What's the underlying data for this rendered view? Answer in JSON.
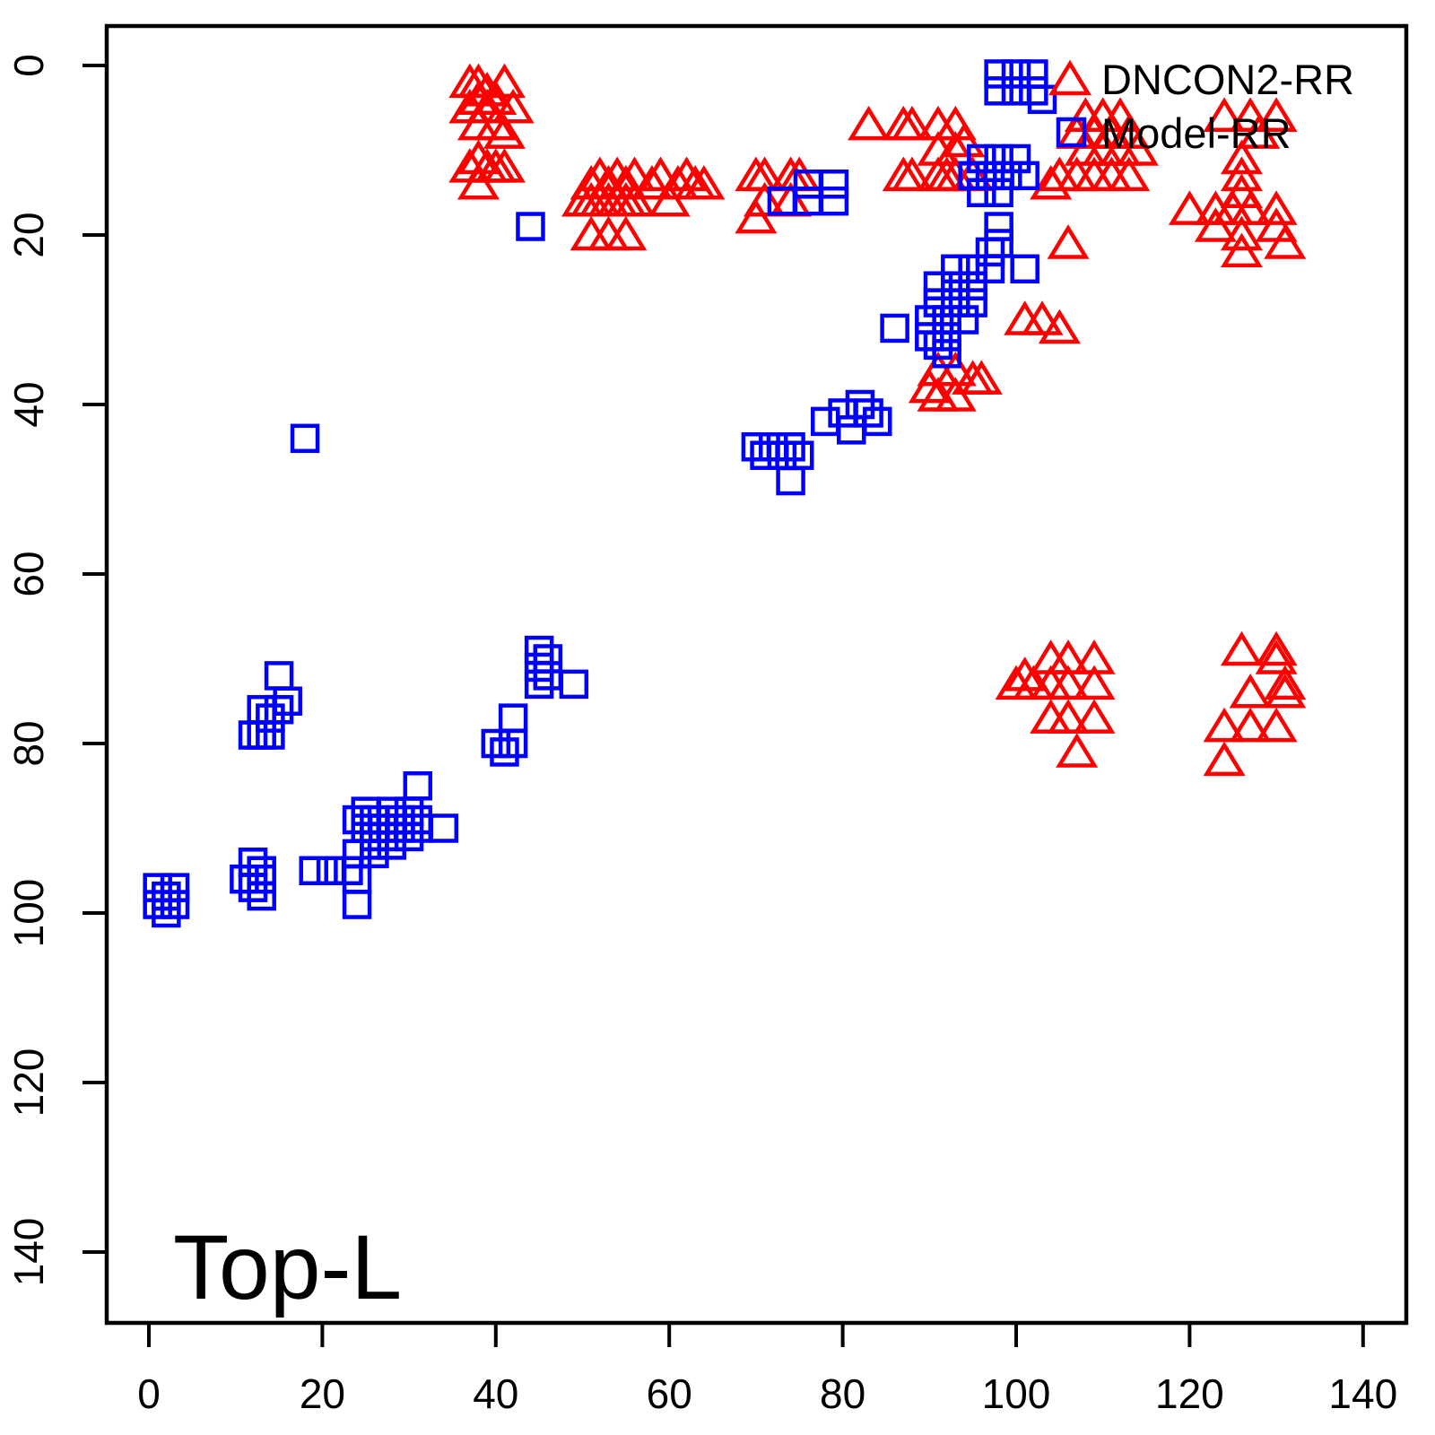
{
  "figure": {
    "corner_label": "Top-L",
    "background_color": "#FFFFFF",
    "axis_color": "#000000"
  },
  "legend": {
    "position": "top-right",
    "items": [
      {
        "label": "DNCON2-RR",
        "marker": "triangle",
        "color": "#FF0000"
      },
      {
        "label": "Model-RR",
        "marker": "square",
        "color": "#0000FF"
      }
    ]
  },
  "chart_data": {
    "type": "scatter",
    "title": "",
    "xlabel": "",
    "ylabel": "",
    "annotation": "Top-L",
    "grid": false,
    "x_ticks": [
      0,
      20,
      40,
      60,
      80,
      100,
      120,
      140
    ],
    "y_ticks": [
      0,
      20,
      40,
      60,
      80,
      100,
      120,
      140
    ],
    "xlim": [
      0,
      151
    ],
    "ylim": [
      0,
      153
    ],
    "y_axis_inverted": true,
    "series": [
      {
        "name": "DNCON2-RR",
        "marker": "triangle",
        "color": "#FF0000",
        "points": [
          [
            37,
            2
          ],
          [
            38,
            2
          ],
          [
            39,
            3
          ],
          [
            41,
            2
          ],
          [
            37,
            5
          ],
          [
            38,
            4
          ],
          [
            39,
            5
          ],
          [
            40,
            4
          ],
          [
            42,
            5
          ],
          [
            38,
            7
          ],
          [
            40,
            7
          ],
          [
            41,
            8
          ],
          [
            37,
            12
          ],
          [
            38,
            11
          ],
          [
            39,
            12
          ],
          [
            40,
            12
          ],
          [
            41,
            12
          ],
          [
            38,
            14
          ],
          [
            51,
            14
          ],
          [
            52,
            13
          ],
          [
            53,
            14
          ],
          [
            54,
            13
          ],
          [
            55,
            14
          ],
          [
            56,
            13
          ],
          [
            58,
            14
          ],
          [
            59,
            13
          ],
          [
            61,
            14
          ],
          [
            62,
            13
          ],
          [
            63,
            14
          ],
          [
            64,
            14
          ],
          [
            50,
            16
          ],
          [
            51,
            16
          ],
          [
            52,
            16
          ],
          [
            53,
            16
          ],
          [
            54,
            16
          ],
          [
            55,
            16
          ],
          [
            56,
            16
          ],
          [
            60,
            16
          ],
          [
            51,
            20
          ],
          [
            53,
            20
          ],
          [
            55,
            20
          ],
          [
            70,
            13
          ],
          [
            71,
            13
          ],
          [
            74,
            13
          ],
          [
            75,
            13
          ],
          [
            71,
            16
          ],
          [
            74,
            16
          ],
          [
            70,
            18
          ],
          [
            83,
            7
          ],
          [
            87,
            7
          ],
          [
            88,
            7
          ],
          [
            91,
            7
          ],
          [
            93,
            7
          ],
          [
            91,
            10
          ],
          [
            93,
            10
          ],
          [
            94,
            9
          ],
          [
            87,
            13
          ],
          [
            88,
            13
          ],
          [
            91,
            13
          ],
          [
            92,
            13
          ],
          [
            93,
            13
          ],
          [
            95,
            13
          ],
          [
            108,
            6
          ],
          [
            110,
            6
          ],
          [
            112,
            6
          ],
          [
            107,
            8
          ],
          [
            109,
            8
          ],
          [
            111,
            8
          ],
          [
            113,
            8
          ],
          [
            108,
            10
          ],
          [
            110,
            10
          ],
          [
            112,
            10
          ],
          [
            114,
            10
          ],
          [
            105,
            13
          ],
          [
            107,
            13
          ],
          [
            109,
            13
          ],
          [
            111,
            13
          ],
          [
            113,
            13
          ],
          [
            104,
            14
          ],
          [
            124,
            6
          ],
          [
            127,
            6
          ],
          [
            130,
            6
          ],
          [
            128,
            8
          ],
          [
            126,
            11
          ],
          [
            126,
            13
          ],
          [
            126,
            15
          ],
          [
            120,
            17
          ],
          [
            123,
            17
          ],
          [
            125,
            17
          ],
          [
            127,
            17
          ],
          [
            130,
            17
          ],
          [
            123,
            19
          ],
          [
            130,
            19
          ],
          [
            126,
            20
          ],
          [
            131,
            21
          ],
          [
            126,
            22
          ],
          [
            106,
            21
          ],
          [
            101,
            30
          ],
          [
            103,
            30
          ],
          [
            105,
            31
          ],
          [
            90,
            38
          ],
          [
            91,
            36
          ],
          [
            93,
            36
          ],
          [
            95,
            37
          ],
          [
            96,
            37
          ],
          [
            91,
            39
          ],
          [
            93,
            39
          ],
          [
            104,
            70
          ],
          [
            106,
            70
          ],
          [
            109,
            70
          ],
          [
            101,
            72
          ],
          [
            100,
            73
          ],
          [
            102,
            73
          ],
          [
            104,
            73
          ],
          [
            106,
            73
          ],
          [
            109,
            73
          ],
          [
            104,
            77
          ],
          [
            106,
            77
          ],
          [
            109,
            77
          ],
          [
            107,
            81
          ],
          [
            126,
            69
          ],
          [
            130,
            69
          ],
          [
            130,
            70
          ],
          [
            131,
            73
          ],
          [
            127,
            74
          ],
          [
            131,
            74
          ],
          [
            124,
            78
          ],
          [
            127,
            78
          ],
          [
            130,
            78
          ],
          [
            124,
            82
          ]
        ]
      },
      {
        "name": "Model-RR",
        "marker": "square",
        "color": "#0000FF",
        "points": [
          [
            98,
            1
          ],
          [
            100,
            1
          ],
          [
            102,
            1
          ],
          [
            98,
            3
          ],
          [
            100,
            3
          ],
          [
            102,
            3
          ],
          [
            103,
            4
          ],
          [
            96,
            11
          ],
          [
            98,
            11
          ],
          [
            100,
            11
          ],
          [
            95,
            13
          ],
          [
            97,
            13
          ],
          [
            99,
            13
          ],
          [
            101,
            13
          ],
          [
            96,
            15
          ],
          [
            98,
            15
          ],
          [
            73,
            16
          ],
          [
            76,
            14
          ],
          [
            76,
            16
          ],
          [
            79,
            14
          ],
          [
            79,
            16
          ],
          [
            44,
            19
          ],
          [
            98,
            19
          ],
          [
            98,
            21
          ],
          [
            97,
            22
          ],
          [
            101,
            24
          ],
          [
            93,
            24
          ],
          [
            95,
            24
          ],
          [
            97,
            24
          ],
          [
            91,
            26
          ],
          [
            93,
            26
          ],
          [
            95,
            26
          ],
          [
            91,
            28
          ],
          [
            93,
            28
          ],
          [
            95,
            28
          ],
          [
            90,
            30
          ],
          [
            92,
            30
          ],
          [
            94,
            30
          ],
          [
            86,
            31
          ],
          [
            90,
            32
          ],
          [
            92,
            32
          ],
          [
            91,
            33
          ],
          [
            92,
            34
          ],
          [
            82,
            40
          ],
          [
            80,
            41
          ],
          [
            83,
            41
          ],
          [
            78,
            42
          ],
          [
            84,
            42
          ],
          [
            81,
            43
          ],
          [
            70,
            45
          ],
          [
            72,
            45
          ],
          [
            74,
            45
          ],
          [
            71,
            46
          ],
          [
            73,
            46
          ],
          [
            75,
            46
          ],
          [
            74,
            49
          ],
          [
            18,
            44
          ],
          [
            45,
            69
          ],
          [
            46,
            70
          ],
          [
            45,
            71
          ],
          [
            46,
            72
          ],
          [
            45,
            73
          ],
          [
            49,
            73
          ],
          [
            15,
            72
          ],
          [
            16,
            75
          ],
          [
            13,
            76
          ],
          [
            15,
            76
          ],
          [
            14,
            77
          ],
          [
            12,
            79
          ],
          [
            13,
            79
          ],
          [
            14,
            79
          ],
          [
            42,
            77
          ],
          [
            40,
            80
          ],
          [
            42,
            80
          ],
          [
            41,
            81
          ],
          [
            31,
            85
          ],
          [
            25,
            88
          ],
          [
            28,
            88
          ],
          [
            30,
            88
          ],
          [
            24,
            89
          ],
          [
            26,
            89
          ],
          [
            29,
            89
          ],
          [
            31,
            89
          ],
          [
            25,
            90
          ],
          [
            27,
            90
          ],
          [
            29,
            90
          ],
          [
            31,
            90
          ],
          [
            34,
            90
          ],
          [
            26,
            91
          ],
          [
            28,
            91
          ],
          [
            30,
            91
          ],
          [
            26,
            92
          ],
          [
            28,
            92
          ],
          [
            24,
            93
          ],
          [
            26,
            93
          ],
          [
            19,
            95
          ],
          [
            21,
            95
          ],
          [
            23,
            95
          ],
          [
            24,
            96
          ],
          [
            24,
            99
          ],
          [
            12,
            94
          ],
          [
            13,
            95
          ],
          [
            11,
            96
          ],
          [
            13,
            96
          ],
          [
            12,
            97
          ],
          [
            13,
            98
          ],
          [
            1,
            97
          ],
          [
            3,
            97
          ],
          [
            2,
            98
          ],
          [
            1,
            99
          ],
          [
            3,
            99
          ],
          [
            2,
            100
          ]
        ]
      }
    ]
  }
}
